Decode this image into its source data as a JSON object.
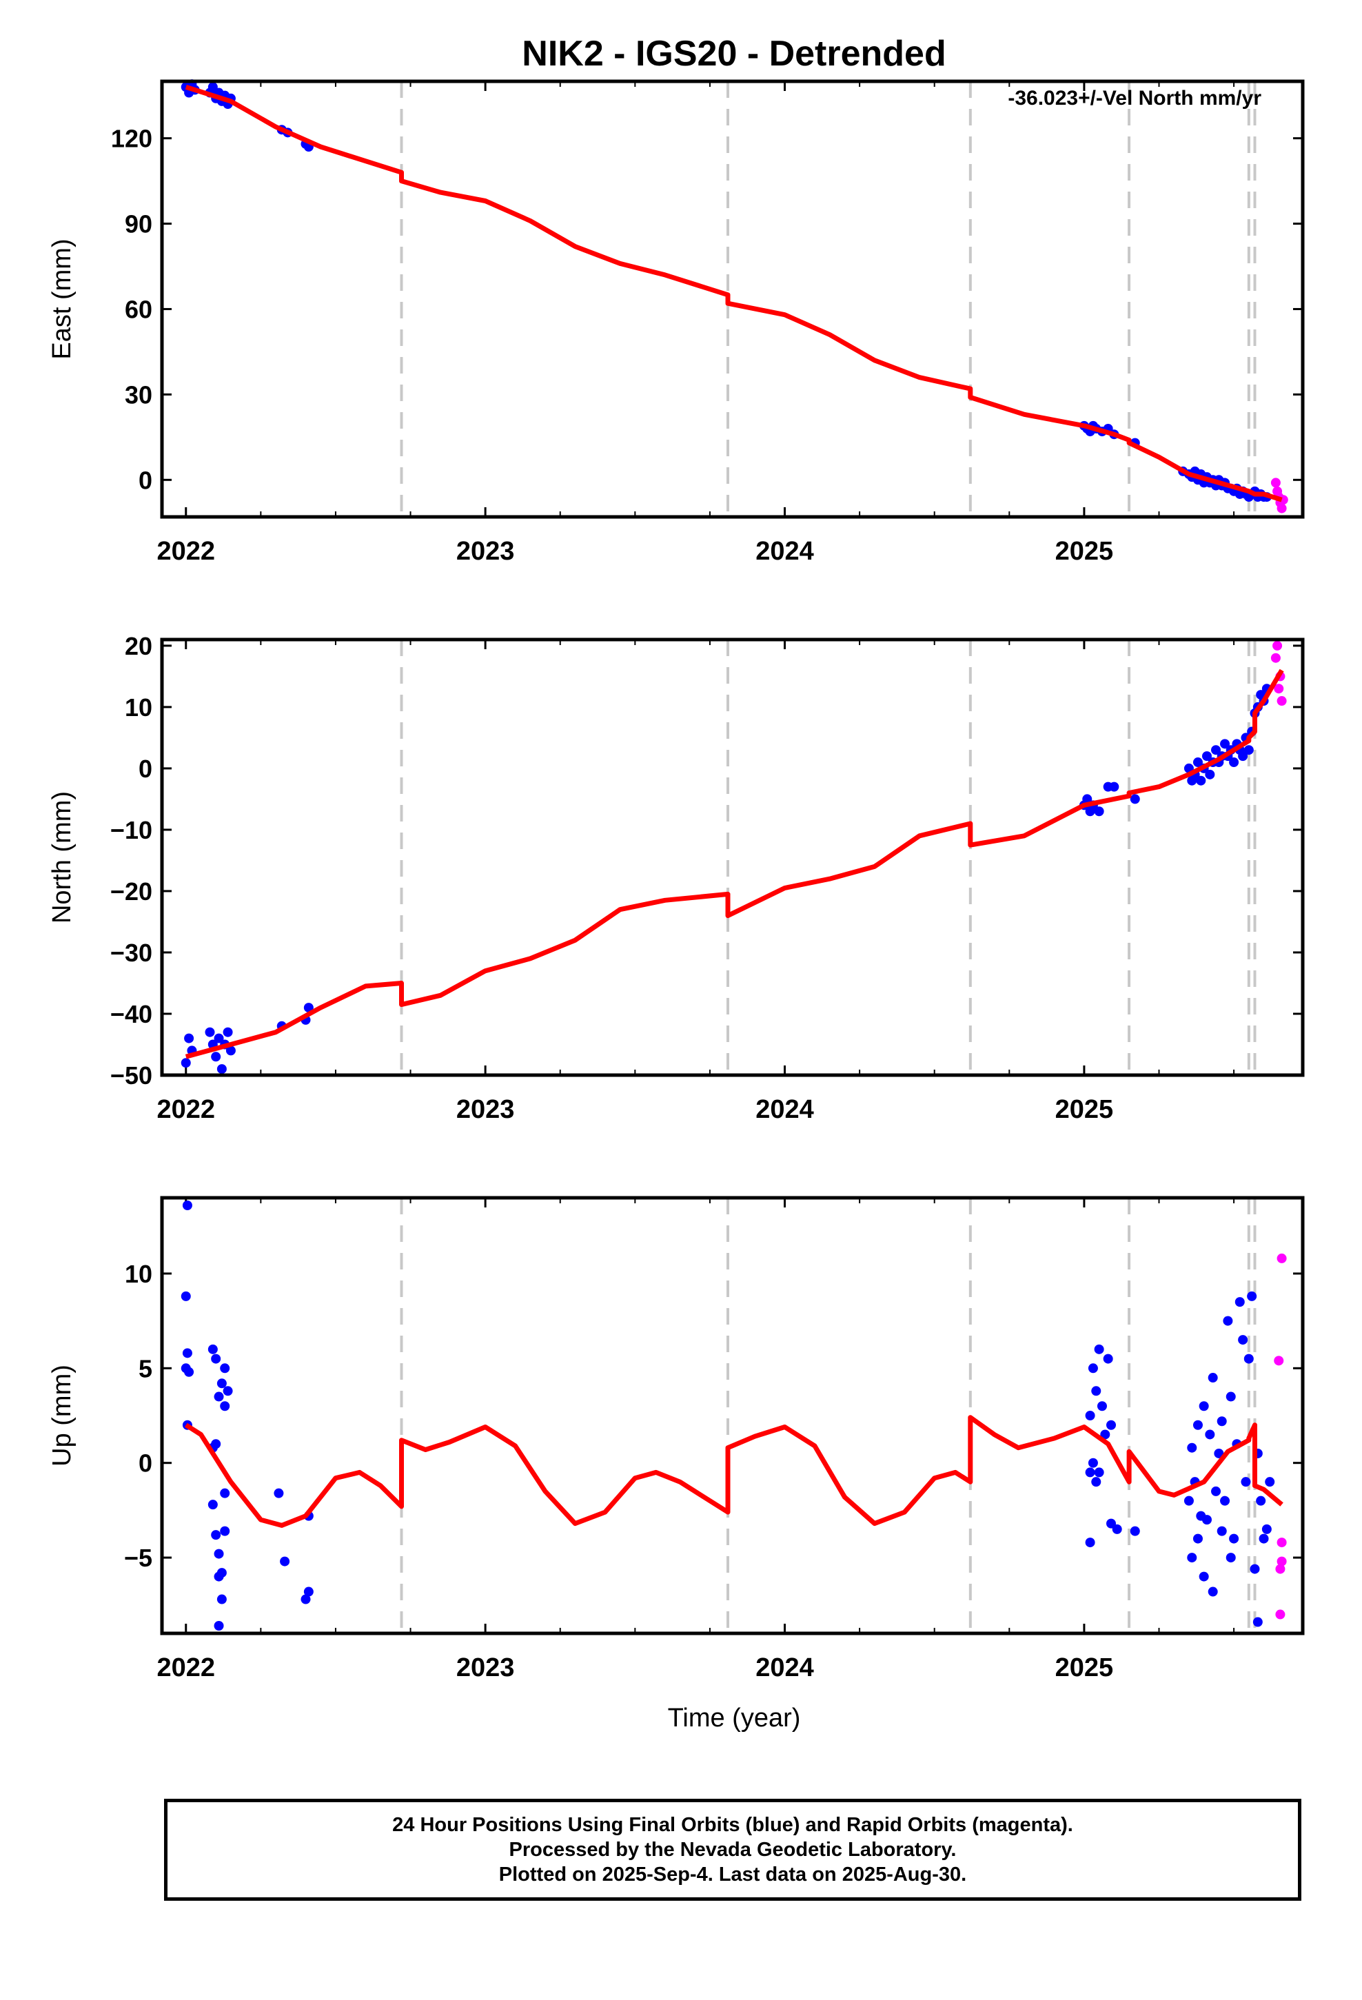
{
  "figure": {
    "title": "NIK2 - IGS20 - Detrended",
    "annotation": "-36.023+/-Vel North mm/yr",
    "xlabel": "Time (year)"
  },
  "footer": {
    "line1": "24 Hour Positions Using Final Orbits (blue) and Rapid Orbits (magenta).",
    "line2": "Processed by the Nevada Geodetic Laboratory.",
    "line3": "Plotted on 2025-Sep-4. Last data on 2025-Aug-30."
  },
  "colors": {
    "final": "#0000ff",
    "rapid": "#ff00ff",
    "model": "#ff0000",
    "event": "#c8c8c8"
  },
  "chart_data": [
    {
      "type": "scatter",
      "panel": "east",
      "ylabel": "East (mm)",
      "xlim": [
        2021.92,
        2025.73
      ],
      "ylim": [
        -13,
        140
      ],
      "xticks": [
        2022,
        2023,
        2024,
        2025
      ],
      "yticks": [
        0,
        30,
        60,
        90,
        120
      ],
      "event_lines": [
        2022.72,
        2023.81,
        2024.62,
        2025.15,
        2025.55,
        2025.57
      ],
      "final_points": [
        [
          2022.0,
          138
        ],
        [
          2022.01,
          136
        ],
        [
          2022.02,
          139
        ],
        [
          2022.03,
          137
        ],
        [
          2022.08,
          136
        ],
        [
          2022.09,
          138
        ],
        [
          2022.1,
          134
        ],
        [
          2022.11,
          136
        ],
        [
          2022.12,
          133
        ],
        [
          2022.13,
          135
        ],
        [
          2022.14,
          132
        ],
        [
          2022.15,
          134
        ],
        [
          2022.32,
          123
        ],
        [
          2022.34,
          122
        ],
        [
          2022.4,
          118
        ],
        [
          2022.41,
          117
        ],
        [
          2025.0,
          19
        ],
        [
          2025.01,
          18
        ],
        [
          2025.02,
          17
        ],
        [
          2025.03,
          19
        ],
        [
          2025.04,
          18
        ],
        [
          2025.06,
          17
        ],
        [
          2025.08,
          18
        ],
        [
          2025.1,
          16
        ],
        [
          2025.17,
          13
        ],
        [
          2025.33,
          3
        ],
        [
          2025.35,
          2
        ],
        [
          2025.36,
          1
        ],
        [
          2025.37,
          3
        ],
        [
          2025.38,
          0
        ],
        [
          2025.39,
          2
        ],
        [
          2025.4,
          -1
        ],
        [
          2025.41,
          1
        ],
        [
          2025.42,
          -1
        ],
        [
          2025.43,
          0
        ],
        [
          2025.44,
          -2
        ],
        [
          2025.45,
          0
        ],
        [
          2025.46,
          -2
        ],
        [
          2025.47,
          -1
        ],
        [
          2025.48,
          -3
        ],
        [
          2025.49,
          -3
        ],
        [
          2025.5,
          -4
        ],
        [
          2025.51,
          -3
        ],
        [
          2025.52,
          -5
        ],
        [
          2025.53,
          -4
        ],
        [
          2025.54,
          -5
        ],
        [
          2025.55,
          -6
        ],
        [
          2025.56,
          -5
        ],
        [
          2025.57,
          -4
        ],
        [
          2025.58,
          -6
        ],
        [
          2025.59,
          -5
        ],
        [
          2025.6,
          -6
        ],
        [
          2025.61,
          -6
        ]
      ],
      "rapid_points": [
        [
          2025.64,
          -1
        ],
        [
          2025.645,
          -4
        ],
        [
          2025.65,
          -6
        ],
        [
          2025.655,
          -8
        ],
        [
          2025.66,
          -10
        ],
        [
          2025.665,
          -7
        ]
      ],
      "model_line": [
        [
          2022.0,
          138
        ],
        [
          2022.15,
          133
        ],
        [
          2022.3,
          124
        ],
        [
          2022.45,
          117
        ],
        [
          2022.6,
          112
        ],
        [
          2022.72,
          108
        ],
        [
          2022.72,
          105
        ],
        [
          2022.85,
          101
        ],
        [
          2023.0,
          98
        ],
        [
          2023.15,
          91
        ],
        [
          2023.3,
          82
        ],
        [
          2023.45,
          76
        ],
        [
          2023.6,
          72
        ],
        [
          2023.81,
          65
        ],
        [
          2023.81,
          62
        ],
        [
          2024.0,
          58
        ],
        [
          2024.15,
          51
        ],
        [
          2024.3,
          42
        ],
        [
          2024.45,
          36
        ],
        [
          2024.62,
          32
        ],
        [
          2024.62,
          29
        ],
        [
          2024.8,
          23
        ],
        [
          2025.0,
          19
        ],
        [
          2025.1,
          16
        ],
        [
          2025.15,
          14
        ],
        [
          2025.15,
          13
        ],
        [
          2025.25,
          8
        ],
        [
          2025.35,
          2
        ],
        [
          2025.45,
          -1
        ],
        [
          2025.55,
          -4
        ],
        [
          2025.55,
          -4
        ],
        [
          2025.57,
          -5
        ],
        [
          2025.57,
          -5
        ],
        [
          2025.6,
          -5
        ],
        [
          2025.66,
          -7
        ]
      ]
    },
    {
      "type": "scatter",
      "panel": "north",
      "ylabel": "North (mm)",
      "xlim": [
        2021.92,
        2025.73
      ],
      "ylim": [
        -50,
        21
      ],
      "xticks": [
        2022,
        2023,
        2024,
        2025
      ],
      "yticks": [
        -50,
        -40,
        -30,
        -20,
        -10,
        0,
        10,
        20
      ],
      "event_lines": [
        2022.72,
        2023.81,
        2024.62,
        2025.15,
        2025.55,
        2025.57
      ],
      "final_points": [
        [
          2022.0,
          -48
        ],
        [
          2022.01,
          -44
        ],
        [
          2022.02,
          -46
        ],
        [
          2022.08,
          -43
        ],
        [
          2022.09,
          -45
        ],
        [
          2022.1,
          -47
        ],
        [
          2022.11,
          -44
        ],
        [
          2022.12,
          -49
        ],
        [
          2022.13,
          -45
        ],
        [
          2022.14,
          -43
        ],
        [
          2022.15,
          -46
        ],
        [
          2022.32,
          -42
        ],
        [
          2022.4,
          -41
        ],
        [
          2022.41,
          -39
        ],
        [
          2025.0,
          -6
        ],
        [
          2025.01,
          -5
        ],
        [
          2025.02,
          -7
        ],
        [
          2025.03,
          -6
        ],
        [
          2025.05,
          -7
        ],
        [
          2025.08,
          -3
        ],
        [
          2025.1,
          -3
        ],
        [
          2025.17,
          -5
        ],
        [
          2025.35,
          0
        ],
        [
          2025.36,
          -2
        ],
        [
          2025.37,
          -1
        ],
        [
          2025.38,
          1
        ],
        [
          2025.39,
          -2
        ],
        [
          2025.4,
          0
        ],
        [
          2025.41,
          2
        ],
        [
          2025.42,
          -1
        ],
        [
          2025.43,
          1
        ],
        [
          2025.44,
          3
        ],
        [
          2025.45,
          1
        ],
        [
          2025.46,
          2
        ],
        [
          2025.47,
          4
        ],
        [
          2025.48,
          2
        ],
        [
          2025.49,
          3
        ],
        [
          2025.5,
          1
        ],
        [
          2025.51,
          4
        ],
        [
          2025.52,
          3
        ],
        [
          2025.53,
          2
        ],
        [
          2025.54,
          5
        ],
        [
          2025.55,
          3
        ],
        [
          2025.56,
          6
        ],
        [
          2025.57,
          9
        ],
        [
          2025.58,
          10
        ],
        [
          2025.59,
          12
        ],
        [
          2025.6,
          11
        ],
        [
          2025.61,
          13
        ]
      ],
      "rapid_points": [
        [
          2025.64,
          18
        ],
        [
          2025.645,
          20
        ],
        [
          2025.65,
          13
        ],
        [
          2025.655,
          15
        ],
        [
          2025.66,
          11
        ]
      ],
      "model_line": [
        [
          2022.0,
          -47
        ],
        [
          2022.15,
          -45
        ],
        [
          2022.3,
          -43
        ],
        [
          2022.45,
          -39
        ],
        [
          2022.6,
          -35.5
        ],
        [
          2022.72,
          -35
        ],
        [
          2022.72,
          -38.5
        ],
        [
          2022.85,
          -37
        ],
        [
          2023.0,
          -33
        ],
        [
          2023.15,
          -31
        ],
        [
          2023.3,
          -28
        ],
        [
          2023.45,
          -23
        ],
        [
          2023.6,
          -21.5
        ],
        [
          2023.81,
          -20.5
        ],
        [
          2023.81,
          -24
        ],
        [
          2024.0,
          -19.5
        ],
        [
          2024.15,
          -18
        ],
        [
          2024.3,
          -16
        ],
        [
          2024.45,
          -11
        ],
        [
          2024.62,
          -9
        ],
        [
          2024.62,
          -12.5
        ],
        [
          2024.8,
          -11
        ],
        [
          2025.0,
          -6
        ],
        [
          2025.1,
          -5
        ],
        [
          2025.15,
          -4.5
        ],
        [
          2025.15,
          -4
        ],
        [
          2025.25,
          -3
        ],
        [
          2025.35,
          -1
        ],
        [
          2025.45,
          1.5
        ],
        [
          2025.55,
          4.5
        ],
        [
          2025.55,
          5
        ],
        [
          2025.57,
          6
        ],
        [
          2025.57,
          9
        ],
        [
          2025.6,
          11
        ],
        [
          2025.66,
          16
        ]
      ]
    },
    {
      "type": "scatter",
      "panel": "up",
      "ylabel": "Up (mm)",
      "xlim": [
        2021.92,
        2025.73
      ],
      "ylim": [
        -9,
        14
      ],
      "xticks": [
        2022,
        2023,
        2024,
        2025
      ],
      "yticks": [
        -5,
        0,
        5,
        10
      ],
      "event_lines": [
        2022.72,
        2023.81,
        2024.62,
        2025.15,
        2025.55,
        2025.57
      ],
      "final_points": [
        [
          2022.005,
          13.6
        ],
        [
          2022.0,
          8.8
        ],
        [
          2022.005,
          5.8
        ],
        [
          2022.0,
          5.0
        ],
        [
          2022.01,
          4.8
        ],
        [
          2022.005,
          2.0
        ],
        [
          2022.09,
          6.0
        ],
        [
          2022.1,
          5.5
        ],
        [
          2022.11,
          3.5
        ],
        [
          2022.12,
          4.2
        ],
        [
          2022.13,
          5.0
        ],
        [
          2022.13,
          3.0
        ],
        [
          2022.14,
          3.8
        ],
        [
          2022.09,
          0.8
        ],
        [
          2022.1,
          1.0
        ],
        [
          2022.09,
          -2.2
        ],
        [
          2022.1,
          -3.8
        ],
        [
          2022.11,
          -4.8
        ],
        [
          2022.12,
          -5.8
        ],
        [
          2022.13,
          -3.6
        ],
        [
          2022.11,
          -6.0
        ],
        [
          2022.12,
          -7.2
        ],
        [
          2022.11,
          -8.6
        ],
        [
          2022.13,
          -1.6
        ],
        [
          2022.31,
          -1.6
        ],
        [
          2022.33,
          -5.2
        ],
        [
          2022.4,
          -7.2
        ],
        [
          2022.41,
          -6.8
        ],
        [
          2022.41,
          -2.8
        ],
        [
          2025.02,
          2.5
        ],
        [
          2025.03,
          5.0
        ],
        [
          2025.04,
          3.8
        ],
        [
          2025.05,
          6.0
        ],
        [
          2025.06,
          3.0
        ],
        [
          2025.07,
          1.5
        ],
        [
          2025.02,
          -0.5
        ],
        [
          2025.03,
          0.0
        ],
        [
          2025.08,
          5.5
        ],
        [
          2025.09,
          2.0
        ],
        [
          2025.04,
          -1.0
        ],
        [
          2025.05,
          -0.5
        ],
        [
          2025.02,
          -4.2
        ],
        [
          2025.09,
          -3.2
        ],
        [
          2025.17,
          -3.6
        ],
        [
          2025.11,
          -3.5
        ],
        [
          2025.35,
          -2.0
        ],
        [
          2025.36,
          0.8
        ],
        [
          2025.37,
          -1.0
        ],
        [
          2025.38,
          2.0
        ],
        [
          2025.39,
          -2.8
        ],
        [
          2025.4,
          3.0
        ],
        [
          2025.41,
          -3.0
        ],
        [
          2025.42,
          1.5
        ],
        [
          2025.43,
          4.5
        ],
        [
          2025.44,
          -1.5
        ],
        [
          2025.45,
          0.5
        ],
        [
          2025.46,
          2.2
        ],
        [
          2025.47,
          -2.0
        ],
        [
          2025.48,
          7.5
        ],
        [
          2025.49,
          3.5
        ],
        [
          2025.5,
          -4.0
        ],
        [
          2025.51,
          1.0
        ],
        [
          2025.52,
          8.5
        ],
        [
          2025.53,
          6.5
        ],
        [
          2025.54,
          -1.0
        ],
        [
          2025.55,
          5.5
        ],
        [
          2025.56,
          8.8
        ],
        [
          2025.57,
          -5.6
        ],
        [
          2025.58,
          0.5
        ],
        [
          2025.59,
          -2.0
        ],
        [
          2025.6,
          -4.0
        ],
        [
          2025.61,
          -3.5
        ],
        [
          2025.62,
          -1.0
        ],
        [
          2025.58,
          -8.4
        ],
        [
          2025.36,
          -5.0
        ],
        [
          2025.38,
          -4.0
        ],
        [
          2025.4,
          -6.0
        ],
        [
          2025.43,
          -6.8
        ],
        [
          2025.46,
          -3.6
        ],
        [
          2025.49,
          -5.0
        ]
      ],
      "rapid_points": [
        [
          2025.66,
          10.8
        ],
        [
          2025.65,
          5.4
        ],
        [
          2025.66,
          -4.2
        ],
        [
          2025.655,
          -5.6
        ],
        [
          2025.66,
          -5.2
        ],
        [
          2025.655,
          -8.0
        ]
      ],
      "model_line": [
        [
          2022.0,
          2.0
        ],
        [
          2022.05,
          1.5
        ],
        [
          2022.15,
          -1.0
        ],
        [
          2022.25,
          -3.0
        ],
        [
          2022.32,
          -3.3
        ],
        [
          2022.4,
          -2.8
        ],
        [
          2022.5,
          -0.8
        ],
        [
          2022.58,
          -0.5
        ],
        [
          2022.65,
          -1.2
        ],
        [
          2022.72,
          -2.3
        ],
        [
          2022.72,
          1.2
        ],
        [
          2022.8,
          0.7
        ],
        [
          2022.88,
          1.1
        ],
        [
          2023.0,
          1.9
        ],
        [
          2023.1,
          0.9
        ],
        [
          2023.2,
          -1.5
        ],
        [
          2023.3,
          -3.2
        ],
        [
          2023.4,
          -2.6
        ],
        [
          2023.5,
          -0.8
        ],
        [
          2023.57,
          -0.5
        ],
        [
          2023.65,
          -1.0
        ],
        [
          2023.81,
          -2.6
        ],
        [
          2023.81,
          0.8
        ],
        [
          2023.9,
          1.4
        ],
        [
          2024.0,
          1.9
        ],
        [
          2024.1,
          0.9
        ],
        [
          2024.2,
          -1.8
        ],
        [
          2024.3,
          -3.2
        ],
        [
          2024.4,
          -2.6
        ],
        [
          2024.5,
          -0.8
        ],
        [
          2024.57,
          -0.5
        ],
        [
          2024.62,
          -1.0
        ],
        [
          2024.62,
          2.4
        ],
        [
          2024.7,
          1.5
        ],
        [
          2024.78,
          0.8
        ],
        [
          2024.9,
          1.3
        ],
        [
          2025.0,
          1.9
        ],
        [
          2025.08,
          1.0
        ],
        [
          2025.15,
          -1.0
        ],
        [
          2025.15,
          0.6
        ],
        [
          2025.25,
          -1.5
        ],
        [
          2025.3,
          -1.7
        ],
        [
          2025.4,
          -1.0
        ],
        [
          2025.48,
          0.6
        ],
        [
          2025.55,
          1.2
        ],
        [
          2025.55,
          1.3
        ],
        [
          2025.57,
          2.0
        ],
        [
          2025.57,
          -1.2
        ],
        [
          2025.6,
          -1.4
        ],
        [
          2025.66,
          -2.2
        ]
      ]
    }
  ]
}
